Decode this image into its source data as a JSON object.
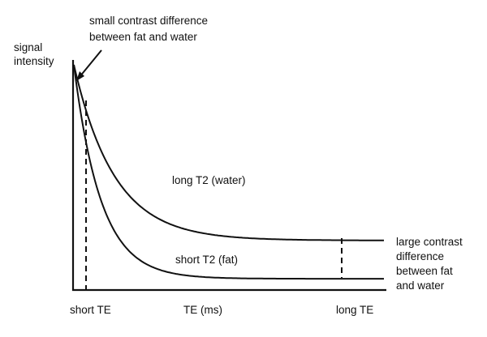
{
  "chart_data": {
    "type": "line",
    "ylabel": [
      "signal",
      "intensity"
    ],
    "xlabel": "TE (ms)",
    "x_ticks": [
      "short TE",
      "long TE"
    ],
    "series": [
      {
        "name": "long T2 (water)",
        "kind": "exponential-decay",
        "start": 1.0,
        "plateau": 0.22
      },
      {
        "name": "short T2 (fat)",
        "kind": "exponential-decay",
        "start": 1.0,
        "plateau": 0.05
      }
    ],
    "annotations": {
      "top": [
        "small contrast difference",
        "between fat and water"
      ],
      "right": [
        "large contrast",
        "difference",
        "between fat",
        "and water"
      ]
    },
    "grid": false,
    "legend": "none"
  }
}
